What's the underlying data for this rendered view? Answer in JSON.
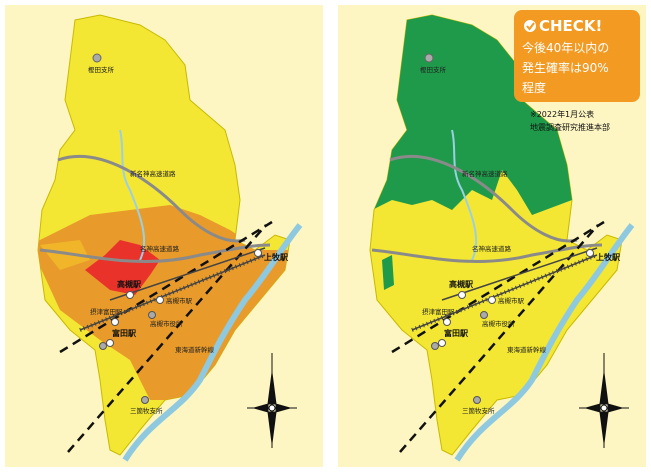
{
  "maps": [
    {
      "labels": {
        "kashida": "樫田支所",
        "shinmeishin": "新名神高速道路",
        "meishin": "名神高速道路",
        "kammaki": "上牧駅",
        "takatsuki": "高槻駅",
        "takatsukishi": "高槻市駅",
        "settsutonda": "摂津富田駅",
        "cityhall": "高槻市役所",
        "tonda": "富田駅",
        "shinkansen": "東海道新幹線",
        "sangamaki": "三箇牧支所"
      }
    },
    {
      "labels": {
        "kashida": "樫田支所",
        "shinmeishin": "新名神高速道路",
        "meishin": "名神高速道路",
        "kammaki": "上牧駅",
        "takatsuki": "高槻駅",
        "takatsukishi": "高槻市駅",
        "settsutonda": "摂津富田駅",
        "cityhall": "高槻市役所",
        "tonda": "富田駅",
        "shinkansen": "東海道新幹線",
        "sangamaki": "三箇牧支所"
      },
      "callout": {
        "heading": "CHECK!",
        "lines": [
          "今後40年以内の",
          "発生確率は90%",
          "程度"
        ],
        "note": [
          "※2022年1月公表",
          "地震調査研究推進本部"
        ]
      }
    }
  ]
}
